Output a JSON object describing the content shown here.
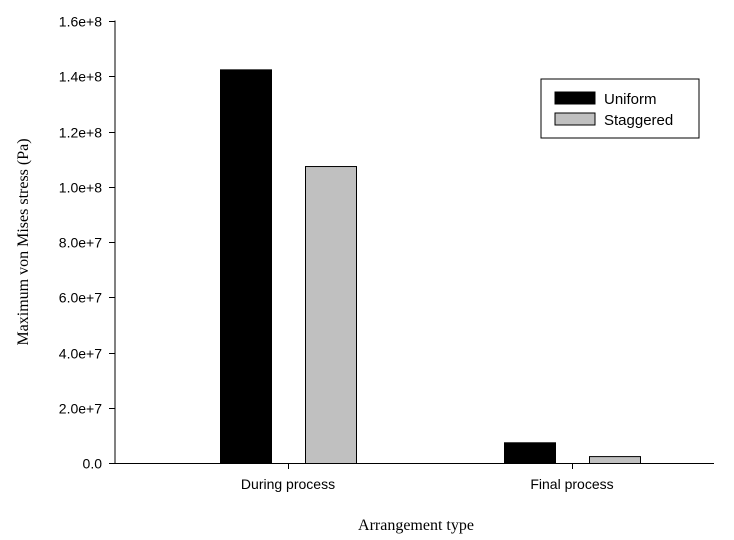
{
  "chart_data": {
    "type": "bar",
    "categories": [
      "During process",
      "Final process"
    ],
    "series": [
      {
        "name": "Uniform",
        "values": [
          142500000,
          7500000
        ],
        "color": "#000000"
      },
      {
        "name": "Staggered",
        "values": [
          107500000,
          2500000
        ],
        "color": "#c0c0c0"
      }
    ],
    "xlabel": "Arrangement type",
    "ylabel": "Maximum von Mises stress (Pa)",
    "ylim": [
      0,
      160000000
    ],
    "yticks": [
      0,
      20000000,
      40000000,
      60000000,
      80000000,
      100000000,
      120000000,
      140000000,
      160000000
    ],
    "ytick_labels": [
      "0.0",
      "2.0e+7",
      "4.0e+7",
      "6.0e+7",
      "8.0e+7",
      "1.0e+8",
      "1.2e+8",
      "1.4e+8",
      "1.6e+8"
    ],
    "legend_position": "top-right",
    "grid": false
  }
}
